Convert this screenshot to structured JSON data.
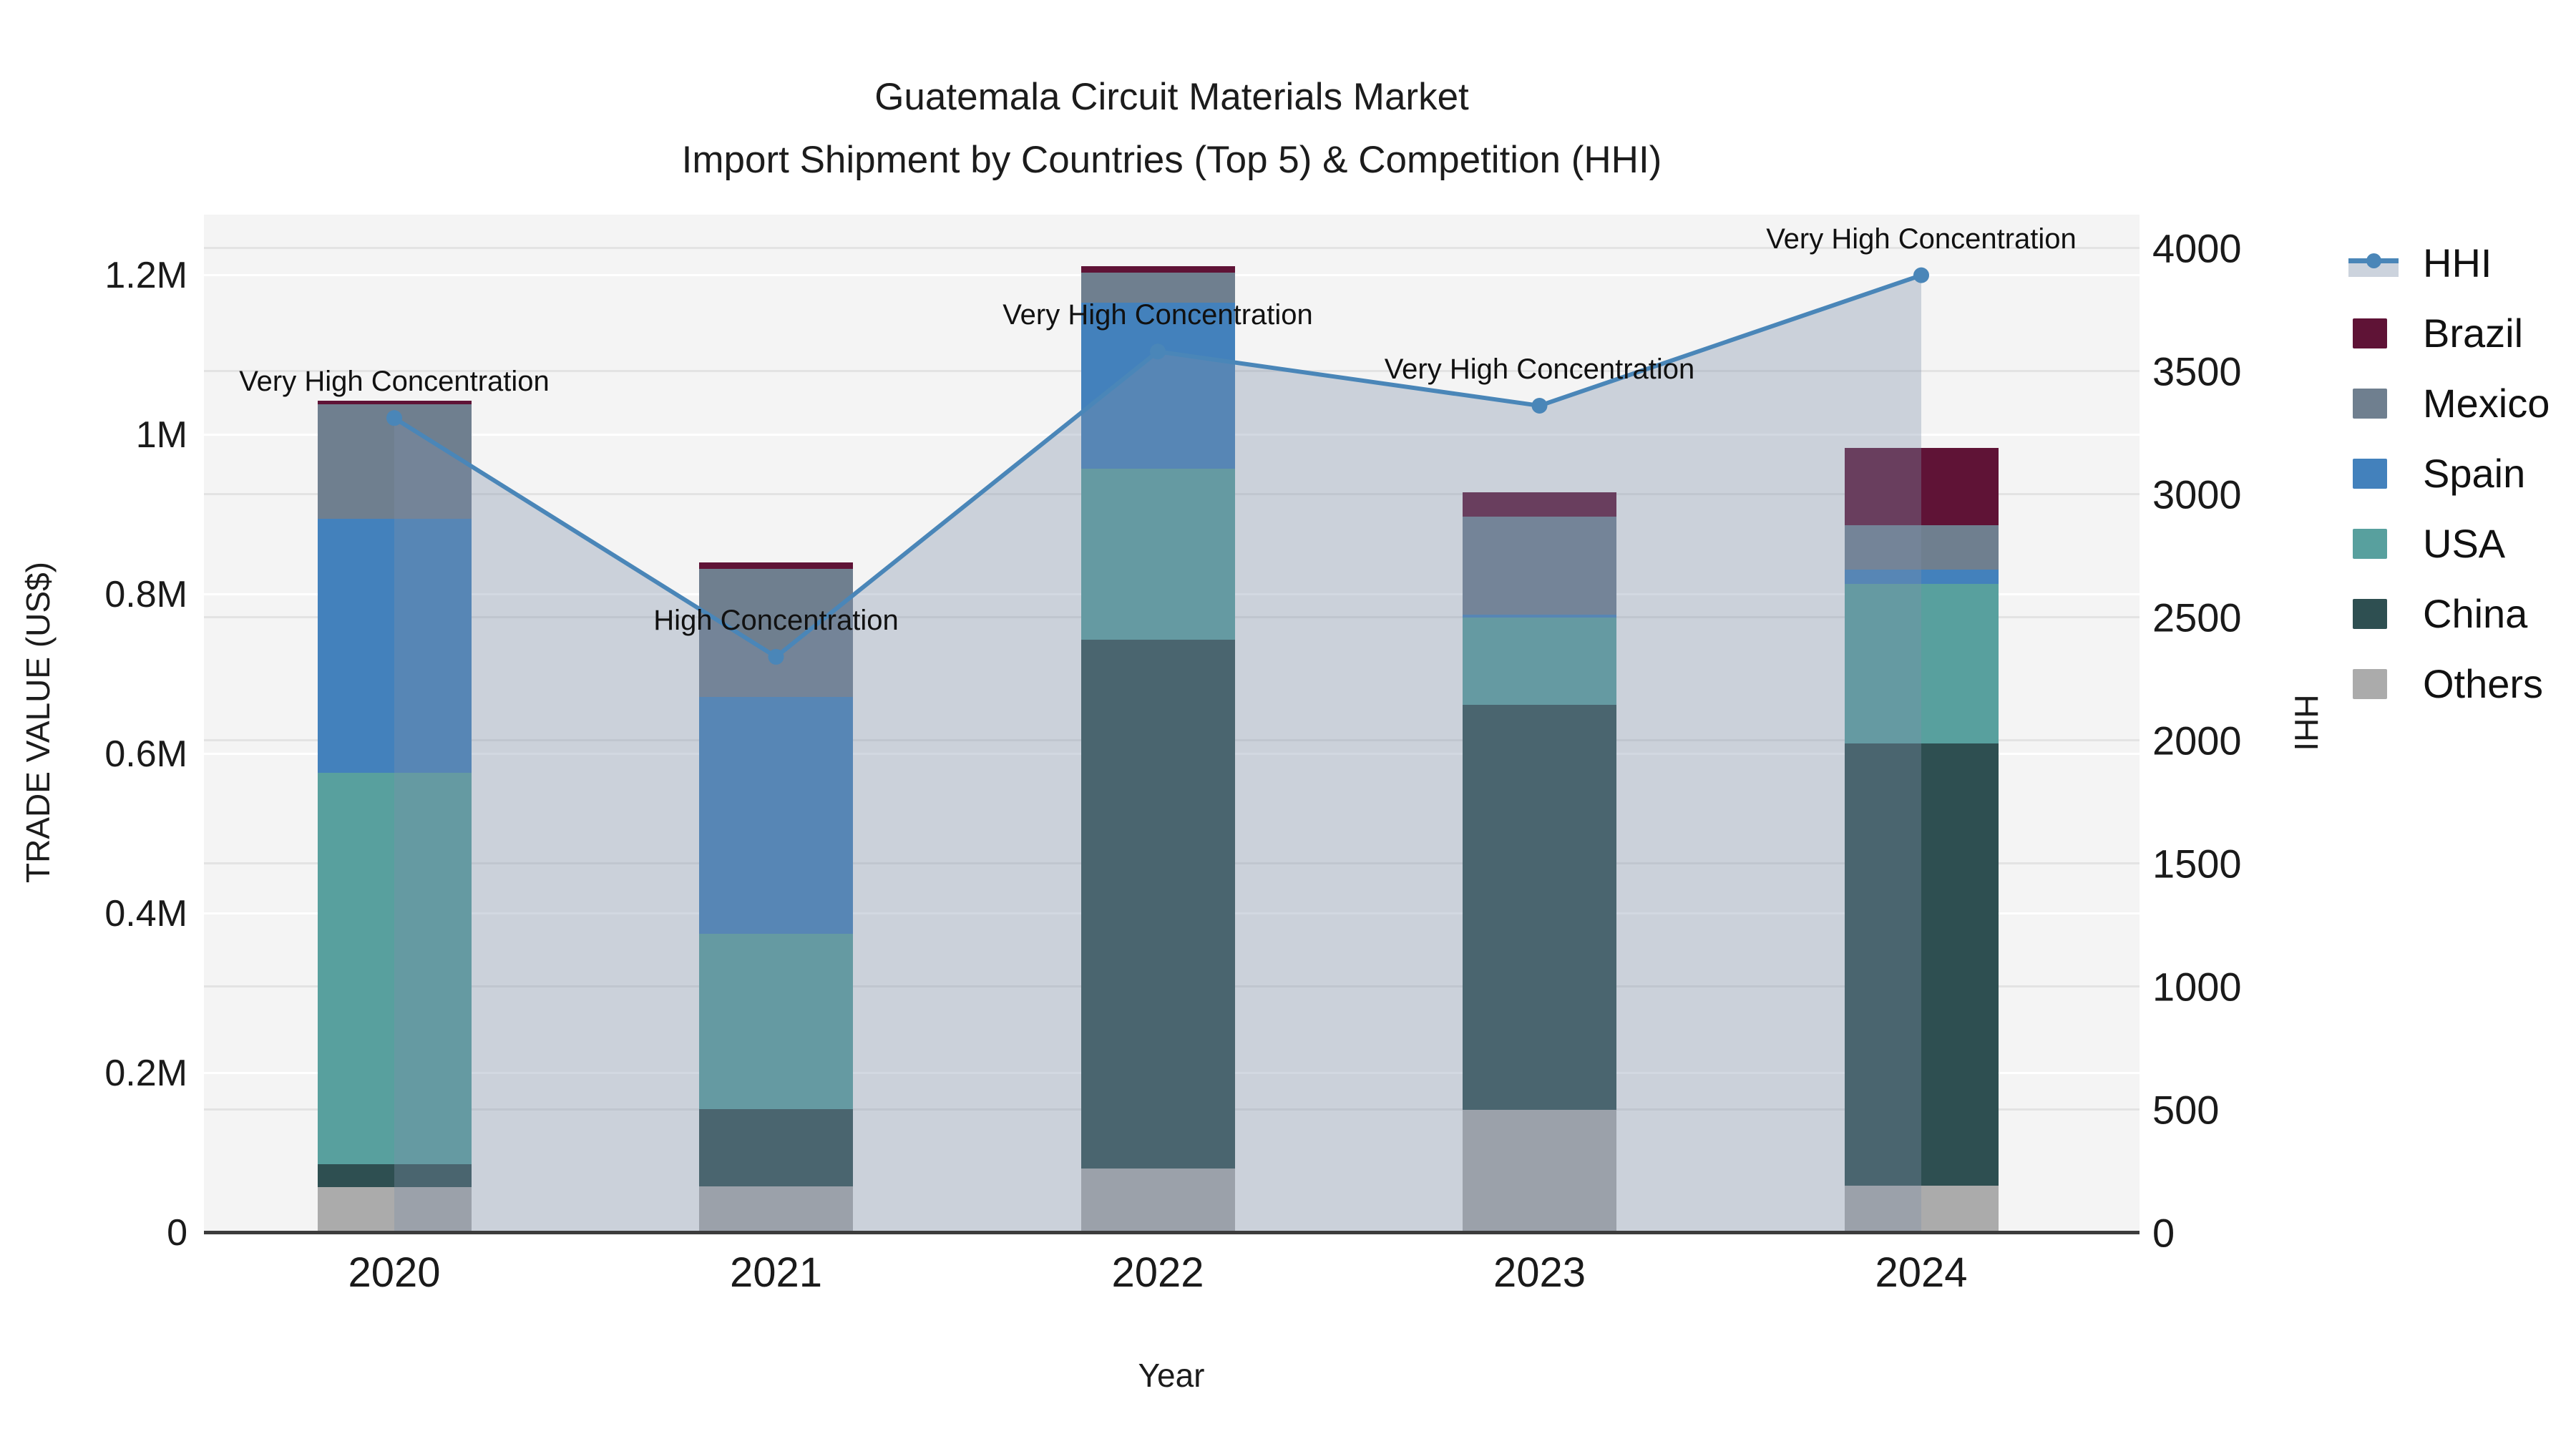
{
  "title": {
    "line1": "Guatemala Circuit Materials Market",
    "line2": "Import Shipment by Countries (Top 5) & Competition (HHI)"
  },
  "axes": {
    "x": {
      "title": "Year",
      "categories": [
        "2020",
        "2021",
        "2022",
        "2023",
        "2024"
      ]
    },
    "y_left": {
      "title": "TRADE VALUE (US$)",
      "tick_labels": [
        "0",
        "0.2M",
        "0.4M",
        "0.6M",
        "0.8M",
        "1M",
        "1.2M"
      ],
      "tick_values": [
        0,
        200000,
        400000,
        600000,
        800000,
        1000000,
        1200000
      ]
    },
    "y_right": {
      "title": "HHI",
      "tick_labels": [
        "0",
        "500",
        "1000",
        "1500",
        "2000",
        "2500",
        "3000",
        "3500",
        "4000"
      ],
      "tick_values": [
        0,
        500,
        1000,
        1500,
        2000,
        2500,
        3000,
        3500,
        4000
      ]
    }
  },
  "legend": {
    "items": [
      {
        "name": "HHI",
        "type": "line",
        "color": "#4a86b8"
      },
      {
        "name": "Brazil",
        "type": "swatch",
        "color": "#5f1336"
      },
      {
        "name": "Mexico",
        "type": "swatch",
        "color": "#6f7f8f"
      },
      {
        "name": "Spain",
        "type": "swatch",
        "color": "#4381bc"
      },
      {
        "name": "USA",
        "type": "swatch",
        "color": "#58a09e"
      },
      {
        "name": "China",
        "type": "swatch",
        "color": "#2e4f51"
      },
      {
        "name": "Others",
        "type": "swatch",
        "color": "#ababab"
      }
    ]
  },
  "chart_data": {
    "type": [
      "bar",
      "line"
    ],
    "categories": [
      "2020",
      "2021",
      "2022",
      "2023",
      "2024"
    ],
    "bar_stack_bottom_to_top": [
      "Others",
      "China",
      "USA",
      "Spain",
      "Mexico",
      "Brazil"
    ],
    "series": [
      {
        "name": "Others",
        "color": "#ababab",
        "values": [
          57000,
          58000,
          81000,
          154000,
          59000
        ]
      },
      {
        "name": "China",
        "color": "#2e4f51",
        "values": [
          29000,
          97000,
          662000,
          508000,
          554000
        ]
      },
      {
        "name": "USA",
        "color": "#58a09e",
        "values": [
          491000,
          220000,
          215000,
          109000,
          200000
        ]
      },
      {
        "name": "Spain",
        "color": "#4381bc",
        "values": [
          318000,
          297000,
          208000,
          4000,
          18000
        ]
      },
      {
        "name": "Mexico",
        "color": "#6f7f8f",
        "values": [
          143000,
          160000,
          37000,
          123000,
          56000
        ]
      },
      {
        "name": "Brazil",
        "color": "#5f1336",
        "values": [
          5000,
          8000,
          8000,
          30000,
          97000
        ]
      }
    ],
    "bar_totals": [
      1043000,
      840000,
      1211000,
      928000,
      984000
    ],
    "hhi": {
      "name": "HHI",
      "axis": "right",
      "line_color": "#4a86b8",
      "fill_color": "rgba(127,142,168,0.35)",
      "values": [
        3310,
        2340,
        3580,
        3360,
        3890
      ]
    },
    "annotations": [
      {
        "category": "2020",
        "text": "Very High Concentration"
      },
      {
        "category": "2021",
        "text": "High Concentration"
      },
      {
        "category": "2022",
        "text": "Very High Concentration"
      },
      {
        "category": "2023",
        "text": "Very High Concentration"
      },
      {
        "category": "2024",
        "text": "Very High Concentration"
      }
    ],
    "title": "Guatemala Circuit Materials Market",
    "subtitle": "Import Shipment by Countries (Top 5) & Competition (HHI)",
    "xlabel": "Year",
    "ylabel_left": "TRADE VALUE (US$)",
    "ylabel_right": "HHI",
    "ylim_left": [
      0,
      1276000
    ],
    "ylim_right": [
      0,
      4136
    ],
    "grid": true,
    "legend_position": "right"
  }
}
